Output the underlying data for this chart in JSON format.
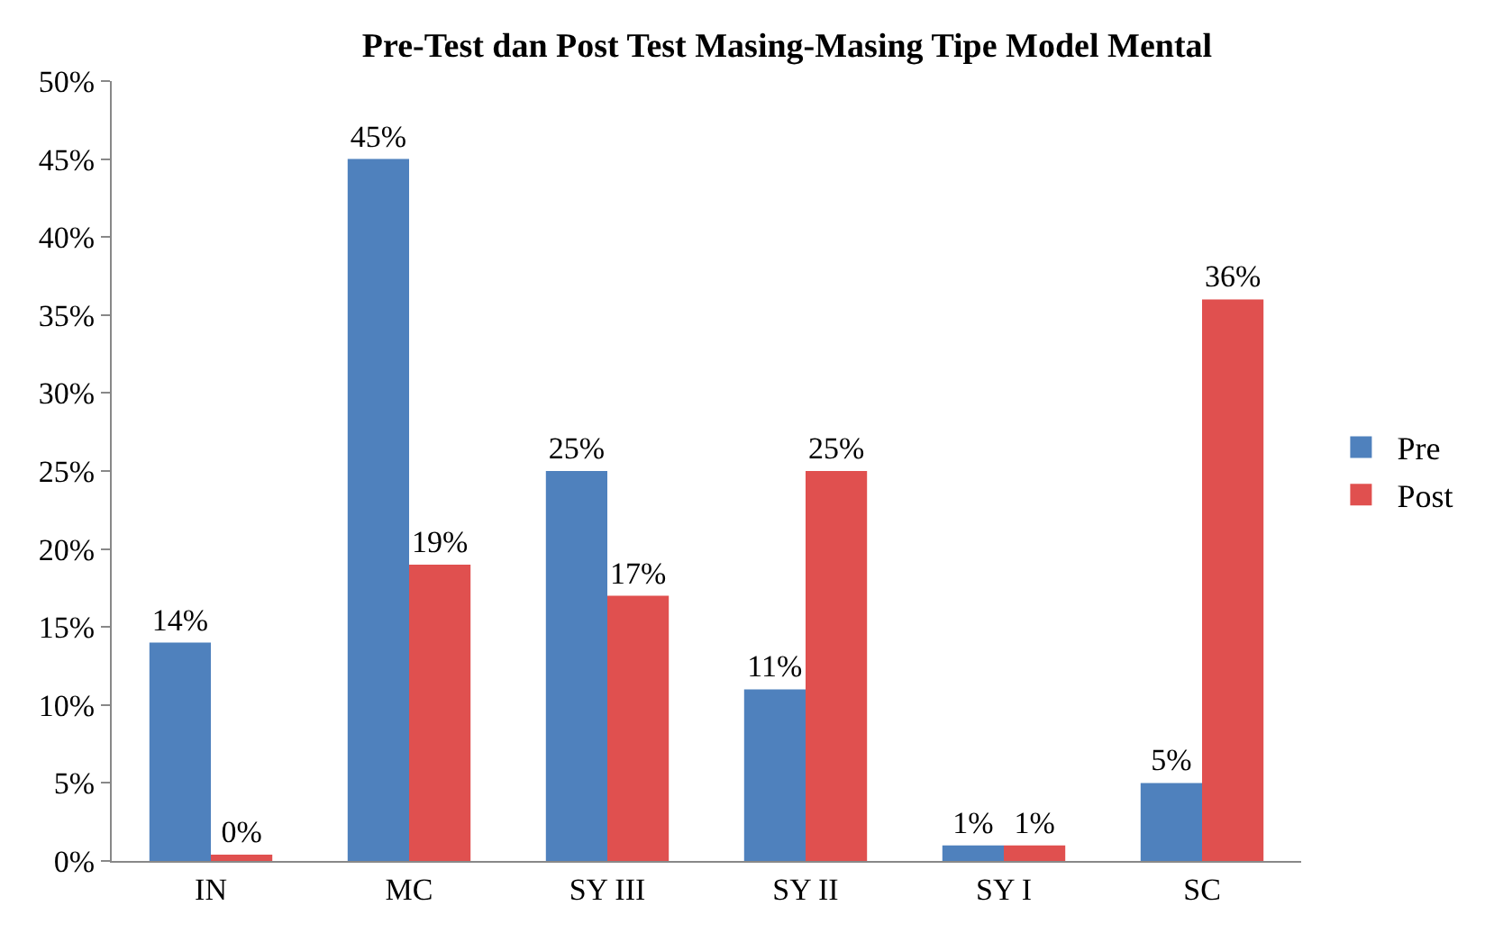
{
  "chart_data": {
    "type": "bar",
    "title": "Pre-Test dan Post Test Masing-Masing Tipe Model Mental",
    "categories": [
      "IN",
      "MC",
      "SY III",
      "SY II",
      "SY I",
      "SC"
    ],
    "series": [
      {
        "name": "Pre",
        "color": "#4f81bd",
        "values": [
          14,
          45,
          25,
          11,
          1,
          5
        ],
        "value_labels": [
          "14%",
          "45%",
          "25%",
          "11%",
          "1%",
          "5%"
        ]
      },
      {
        "name": "Post",
        "color": "#e0504f",
        "values": [
          0.4,
          19,
          17,
          25,
          1,
          36
        ],
        "value_labels": [
          "0%",
          "19%",
          "17%",
          "25%",
          "1%",
          "36%"
        ]
      }
    ],
    "ylim": [
      0,
      50
    ],
    "yticks": [
      {
        "value": 0,
        "label": "0%"
      },
      {
        "value": 5,
        "label": "5%"
      },
      {
        "value": 10,
        "label": "10%"
      },
      {
        "value": 15,
        "label": "15%"
      },
      {
        "value": 20,
        "label": "20%"
      },
      {
        "value": 25,
        "label": "25%"
      },
      {
        "value": 30,
        "label": "30%"
      },
      {
        "value": 35,
        "label": "35%"
      },
      {
        "value": 40,
        "label": "40%"
      },
      {
        "value": 45,
        "label": "45%"
      },
      {
        "value": 50,
        "label": "50%"
      }
    ],
    "legend": "right"
  }
}
